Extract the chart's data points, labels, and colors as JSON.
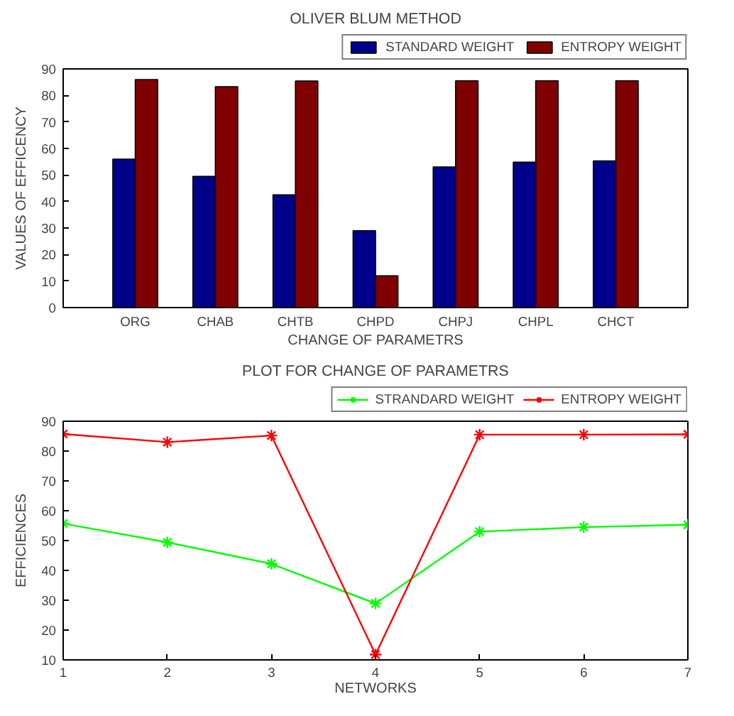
{
  "chart_data": [
    {
      "type": "bar",
      "title": "OLIVER BLUM METHOD",
      "xlabel": "CHANGE OF PARAMETRS",
      "ylabel": "VALUES OF EFFICENCY",
      "categories": [
        "ORG",
        "CHAB",
        "CHTB",
        "CHPD",
        "CHPJ",
        "CHPL",
        "CHCT"
      ],
      "series": [
        {
          "name": "STANDARD WEIGHT",
          "color": "#00008b",
          "values": [
            56,
            49.5,
            42.5,
            29,
            53,
            54.8,
            55.3
          ]
        },
        {
          "name": "ENTROPY WEIGHT",
          "color": "#800000",
          "values": [
            86,
            83.3,
            85.4,
            12,
            85.5,
            85.5,
            85.5
          ]
        }
      ],
      "ylim": [
        0,
        90
      ],
      "yticks": [
        0,
        10,
        20,
        30,
        40,
        50,
        60,
        70,
        80,
        90
      ],
      "grid": false,
      "legend": "top right"
    },
    {
      "type": "line",
      "title": "PLOT FOR CHANGE OF PARAMETRS",
      "xlabel": "NETWORKS",
      "ylabel": "EFFICIENCES",
      "x": [
        1,
        2,
        3,
        4,
        5,
        6,
        7
      ],
      "series": [
        {
          "name": "STRANDARD WEIGHT",
          "color": "#00ff00",
          "values": [
            55.7,
            49.4,
            42.2,
            28.9,
            53,
            54.5,
            55.3
          ]
        },
        {
          "name": "ENTROPY WEIGHT",
          "color": "#ff0000",
          "values": [
            85.7,
            83,
            85.2,
            11.8,
            85.5,
            85.5,
            85.6
          ]
        }
      ],
      "xlim": [
        1,
        7
      ],
      "xticks": [
        1,
        2,
        3,
        4,
        5,
        6,
        7
      ],
      "ylim": [
        10,
        90
      ],
      "yticks": [
        10,
        20,
        30,
        40,
        50,
        60,
        70,
        80,
        90
      ],
      "grid": false,
      "legend": "top right",
      "marker": "cross",
      "line_style": "solid"
    }
  ]
}
